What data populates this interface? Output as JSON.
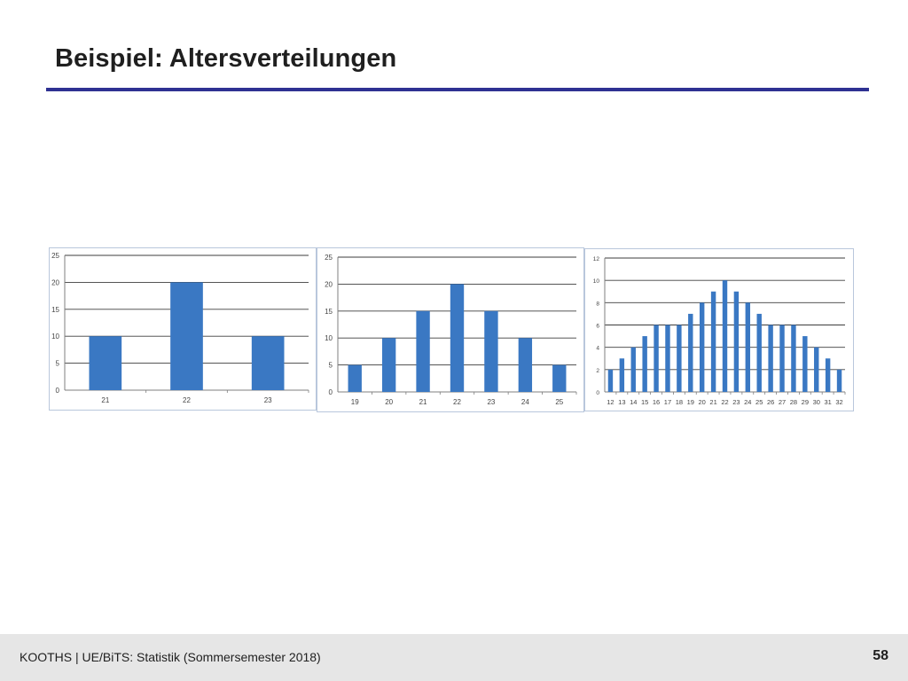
{
  "slide": {
    "title": "Beispiel: Altersverteilungen",
    "footer": "KOOTHS | UE/BiTS: Statistik (Sommersemester 2018)",
    "page_number": "58"
  },
  "chart_data": [
    {
      "type": "bar",
      "categories": [
        "21",
        "22",
        "23"
      ],
      "values": [
        10,
        20,
        10
      ],
      "ylim": [
        0,
        25
      ],
      "yticks": [
        0,
        5,
        10,
        15,
        20,
        25
      ],
      "grid": true,
      "bar_color": "#3a78c3"
    },
    {
      "type": "bar",
      "categories": [
        "19",
        "20",
        "21",
        "22",
        "23",
        "24",
        "25"
      ],
      "values": [
        5,
        10,
        15,
        20,
        15,
        10,
        5
      ],
      "ylim": [
        0,
        25
      ],
      "yticks": [
        0,
        5,
        10,
        15,
        20,
        25
      ],
      "grid": true,
      "bar_color": "#3a78c3"
    },
    {
      "type": "bar",
      "categories": [
        "12",
        "13",
        "14",
        "15",
        "16",
        "17",
        "18",
        "19",
        "20",
        "21",
        "22",
        "23",
        "24",
        "25",
        "26",
        "27",
        "28",
        "29",
        "30",
        "31",
        "32"
      ],
      "values": [
        2,
        3,
        4,
        5,
        6,
        6,
        6,
        7,
        8,
        9,
        10,
        9,
        8,
        7,
        6,
        6,
        6,
        5,
        4,
        3,
        2
      ],
      "ylim": [
        0,
        12
      ],
      "yticks": [
        0,
        2,
        4,
        6,
        8,
        10,
        12
      ],
      "grid": true,
      "bar_color": "#3a78c3"
    }
  ]
}
